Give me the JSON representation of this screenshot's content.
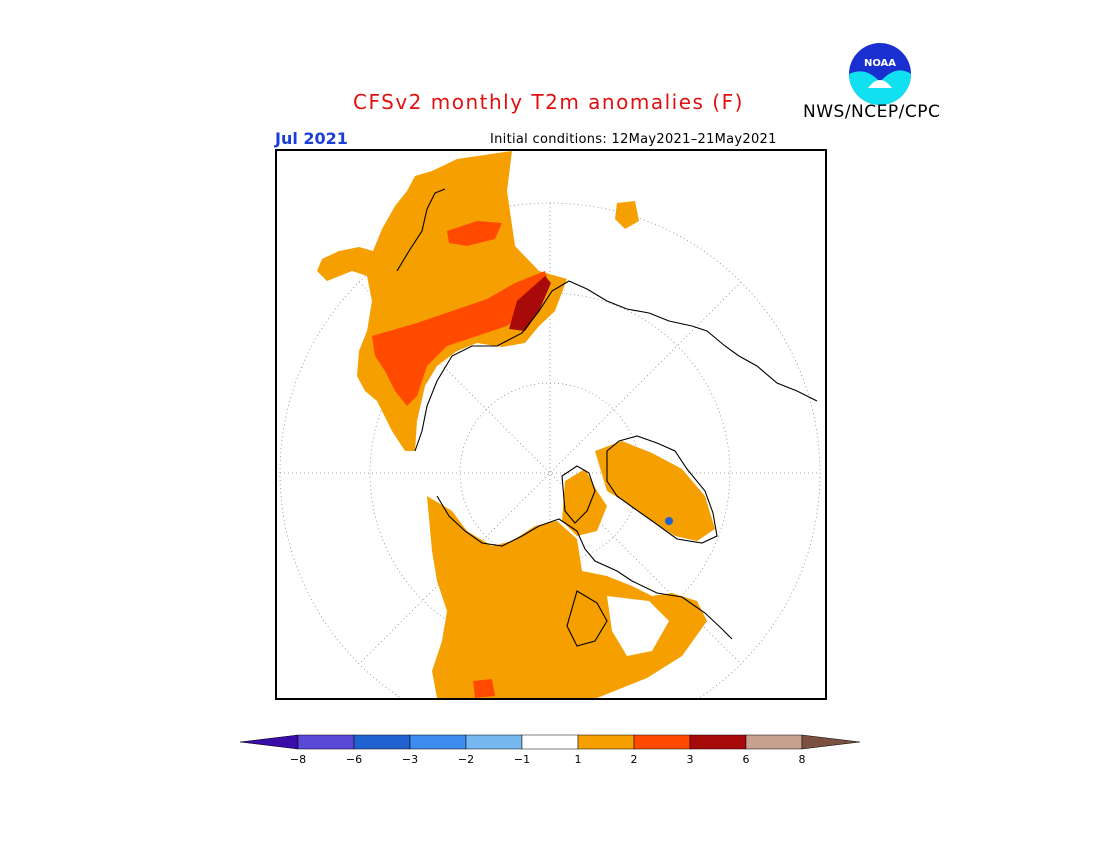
{
  "header": {
    "title": "CFSv2 monthly T2m anomalies (F)",
    "agency": "NWS/NCEP/CPC",
    "logo_text": "NOAA",
    "valid_month": "Jul 2021",
    "initial_conditions": "Initial conditions: 12May2021–21May2021"
  },
  "map": {
    "projection": "north polar stereographic",
    "anomaly_regions": [
      {
        "region": "North Pacific / Bering Sea",
        "level": "1 to 2"
      },
      {
        "region": "Eastern Siberia (south of Arctic coast)",
        "level": "2 to 3"
      },
      {
        "region": "Eastern Siberia coast",
        "level": "3 to 6"
      },
      {
        "region": "Alaska and northwestern Canada",
        "level": "1 to 2"
      },
      {
        "region": "Hudson Bay and Canadian Arctic",
        "level": "1 to 2"
      },
      {
        "region": "Greenland",
        "level": "1 to 2"
      },
      {
        "region": "Western Russia",
        "level": "1 to 2"
      }
    ]
  },
  "colorbar": {
    "colors": [
      "#3a0ca8",
      "#5a48d8",
      "#1f62d0",
      "#3d8df0",
      "#78b8f0",
      "#ffffff",
      "#f5a000",
      "#ff4a00",
      "#a80a0a",
      "#c8a090",
      "#7a5040"
    ],
    "tick_labels": [
      "−8",
      "−6",
      "−3",
      "−2",
      "−1",
      "1",
      "2",
      "3",
      "6",
      "8"
    ]
  }
}
